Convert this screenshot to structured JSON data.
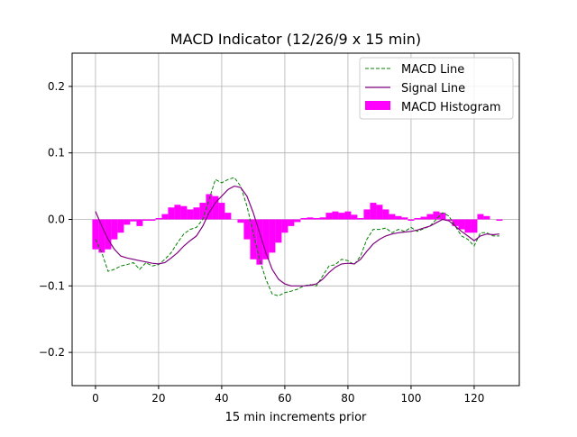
{
  "chart_data": {
    "type": "line",
    "title": "MACD Indicator (12/26/9 x 15 min)",
    "xlabel": "15 min increments prior",
    "ylabel": "",
    "xlim": [
      -7.4,
      134.3
    ],
    "ylim": [
      -0.25,
      0.25
    ],
    "grid": true,
    "legend_placement": "top-right",
    "x_ticks": [
      0,
      20,
      40,
      60,
      80,
      100,
      120
    ],
    "x_tick_labels": [
      "0",
      "20",
      "40",
      "60",
      "80",
      "100",
      "120"
    ],
    "y_ticks": [
      -0.2,
      -0.1,
      0.0,
      0.1,
      0.2
    ],
    "y_tick_labels": [
      "−0.2",
      "−0.1",
      "0.0",
      "0.1",
      "0.2"
    ],
    "x": [
      0,
      2,
      4,
      6,
      8,
      10,
      12,
      14,
      16,
      18,
      20,
      22,
      24,
      26,
      28,
      30,
      32,
      34,
      36,
      38,
      40,
      42,
      44,
      46,
      48,
      50,
      52,
      54,
      56,
      58,
      60,
      62,
      64,
      66,
      68,
      70,
      72,
      74,
      76,
      78,
      80,
      82,
      84,
      86,
      88,
      90,
      92,
      94,
      96,
      98,
      100,
      102,
      104,
      106,
      108,
      110,
      112,
      114,
      116,
      118,
      120,
      122,
      124,
      126,
      128
    ],
    "series": [
      {
        "name": "MACD Line",
        "color": "#008000",
        "style": "dashed",
        "values": [
          -0.03,
          -0.05,
          -0.078,
          -0.075,
          -0.07,
          -0.068,
          -0.065,
          -0.075,
          -0.065,
          -0.07,
          -0.068,
          -0.06,
          -0.05,
          -0.035,
          -0.022,
          -0.015,
          -0.012,
          0.0,
          0.03,
          0.06,
          0.055,
          0.06,
          0.063,
          0.05,
          0.02,
          -0.02,
          -0.06,
          -0.09,
          -0.112,
          -0.115,
          -0.11,
          -0.108,
          -0.105,
          -0.1,
          -0.098,
          -0.1,
          -0.085,
          -0.07,
          -0.068,
          -0.06,
          -0.062,
          -0.068,
          -0.055,
          -0.03,
          -0.015,
          -0.015,
          -0.013,
          -0.02,
          -0.015,
          -0.018,
          -0.012,
          -0.018,
          -0.014,
          -0.01,
          0.0,
          0.01,
          0.005,
          -0.01,
          -0.025,
          -0.03,
          -0.04,
          -0.02,
          -0.02,
          -0.025,
          -0.025
        ]
      },
      {
        "name": "Signal Line",
        "color": "#800080",
        "style": "solid",
        "values": [
          0.012,
          -0.01,
          -0.03,
          -0.045,
          -0.055,
          -0.058,
          -0.06,
          -0.062,
          -0.064,
          -0.066,
          -0.067,
          -0.065,
          -0.058,
          -0.05,
          -0.04,
          -0.032,
          -0.025,
          -0.01,
          0.01,
          0.025,
          0.035,
          0.045,
          0.05,
          0.048,
          0.035,
          0.01,
          -0.02,
          -0.05,
          -0.075,
          -0.09,
          -0.097,
          -0.1,
          -0.1,
          -0.1,
          -0.099,
          -0.097,
          -0.09,
          -0.08,
          -0.072,
          -0.067,
          -0.066,
          -0.067,
          -0.06,
          -0.048,
          -0.037,
          -0.03,
          -0.025,
          -0.022,
          -0.02,
          -0.019,
          -0.018,
          -0.016,
          -0.013,
          -0.01,
          -0.005,
          0.0,
          -0.002,
          -0.01,
          -0.018,
          -0.025,
          -0.032,
          -0.025,
          -0.022,
          -0.023,
          -0.022
        ]
      },
      {
        "name": "MACD Histogram",
        "color": "#ff00ff",
        "style": "bar",
        "values": [
          -0.045,
          -0.05,
          -0.045,
          -0.03,
          -0.02,
          -0.008,
          -0.003,
          -0.01,
          -0.002,
          -0.002,
          0.002,
          0.008,
          0.018,
          0.022,
          0.02,
          0.015,
          0.018,
          0.025,
          0.038,
          0.035,
          0.025,
          0.01,
          0.0,
          -0.005,
          -0.03,
          -0.06,
          -0.068,
          -0.06,
          -0.05,
          -0.035,
          -0.02,
          -0.01,
          -0.004,
          0.002,
          0.003,
          0.002,
          0.003,
          0.01,
          0.012,
          0.01,
          0.012,
          0.007,
          0.002,
          0.015,
          0.025,
          0.022,
          0.015,
          0.008,
          0.005,
          0.003,
          -0.002,
          0.002,
          0.004,
          0.008,
          0.012,
          0.01,
          -0.002,
          -0.01,
          -0.015,
          -0.02,
          -0.02,
          0.008,
          0.005,
          0.0,
          -0.002
        ]
      }
    ]
  }
}
